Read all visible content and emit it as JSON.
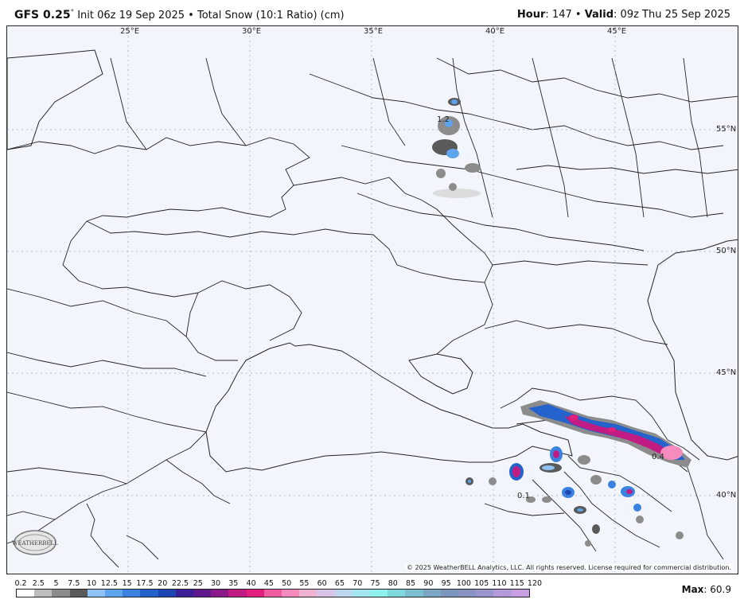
{
  "header": {
    "model": "GFS 0.25",
    "degree": "°",
    "init": "Init 06z 19 Sep 2025",
    "separator": "•",
    "product": "Total Snow (10:1 Ratio) (cm)",
    "hour_label": "Hour",
    "hour_value": ": 147",
    "valid_label": "Valid",
    "valid_value": ": 09z Thu 25 Sep 2025"
  },
  "map": {
    "lon_labels": [
      "25°E",
      "30°E",
      "35°E",
      "40°E",
      "45°E"
    ],
    "lat_labels": [
      "55°N",
      "50°N",
      "45°N",
      "40°N"
    ],
    "point_labels": [
      "1.2",
      "0.4",
      "0.1"
    ],
    "copyright": "© 2025 WeatherBELL Analytics, LLC. All rights reserved. License required for commercial distribution.",
    "logo_text": "WEATHERBELL",
    "colors": {
      "background": "#f2f6fc",
      "borders": "#222222",
      "grid": "#9aa6c4"
    }
  },
  "legend": {
    "labels": [
      "0.2",
      "2.5",
      "5",
      "7.5",
      "10",
      "12.5",
      "15",
      "17.5",
      "20",
      "22.5",
      "25",
      "30",
      "35",
      "40",
      "45",
      "50",
      "55",
      "60",
      "65",
      "70",
      "75",
      "80",
      "85",
      "90",
      "95",
      "100",
      "105",
      "110",
      "115",
      "120"
    ],
    "colors": [
      "#ffffff",
      "#bdbdbd",
      "#8c8c8c",
      "#5a5a5a",
      "#8fc3f5",
      "#5ea4ec",
      "#3a82e0",
      "#2462cc",
      "#1c47b3",
      "#3b1f96",
      "#5e1a8c",
      "#8a1a8a",
      "#c01c83",
      "#e0207a",
      "#f05ca0",
      "#f58cbd",
      "#efb3d2",
      "#d7c4e6",
      "#bcd6ee",
      "#a3e6ef",
      "#8ff0ee",
      "#7fd8dc",
      "#7bbfd0",
      "#7ba6c4",
      "#7c95bd",
      "#8893c4",
      "#9c96cf",
      "#b39ad9",
      "#c89fe2"
    ],
    "max_label": "Max",
    "max_value": ": 60.9"
  }
}
